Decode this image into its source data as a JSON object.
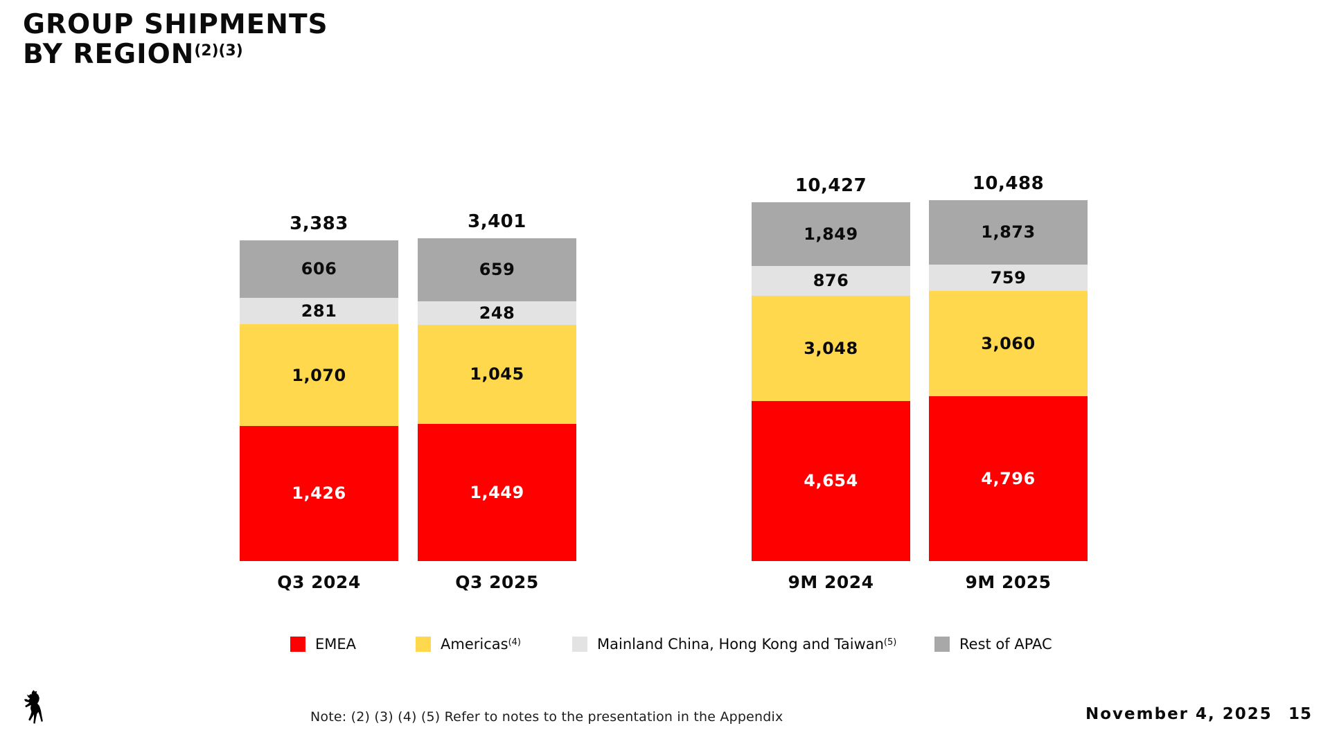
{
  "header": {
    "title_line1": "GROUP SHIPMENTS",
    "title_line2": "BY REGION",
    "title_sup": "(2)(3)"
  },
  "footer": {
    "note": "Note: (2) (3) (4) (5) Refer to notes to the presentation in the Appendix",
    "date": "November 4, 2025",
    "page_number": "15",
    "logo_icon": "ferrari-prancing-horse"
  },
  "colors": {
    "emea_red": "#FF0000",
    "americas_yellow": "#FFD84D",
    "china_light_gray": "#E3E3E3",
    "apac_gray": "#A8A8A8",
    "background": "#FFFFFF",
    "text_black": "#0B0B0B",
    "emea_label_white": "#FFFFFF"
  },
  "chart_data": {
    "type": "bar",
    "stacked": true,
    "title": "GROUP SHIPMENTS BY REGION",
    "value_labels_shown": true,
    "axes_shown": false,
    "grid": false,
    "stack_order_bottom_to_top": [
      "EMEA",
      "Americas",
      "Mainland China, Hong Kong and Taiwan",
      "Rest of APAC"
    ],
    "groups": [
      {
        "categories": [
          "Q3 2024",
          "Q3 2025"
        ],
        "totals": [
          3383,
          3401
        ],
        "series": [
          {
            "name": "EMEA",
            "color": "#FF0000",
            "label_color": "#FFFFFF",
            "values": [
              1426,
              1449
            ]
          },
          {
            "name": "Americas",
            "color": "#FFD84D",
            "label_color": "#0B0B0B",
            "values": [
              1070,
              1045
            ]
          },
          {
            "name": "Mainland China, Hong Kong and Taiwan",
            "color": "#E3E3E3",
            "label_color": "#0B0B0B",
            "values": [
              281,
              248
            ]
          },
          {
            "name": "Rest of APAC",
            "color": "#A8A8A8",
            "label_color": "#0B0B0B",
            "values": [
              606,
              659
            ]
          }
        ]
      },
      {
        "categories": [
          "9M 2024",
          "9M 2025"
        ],
        "totals": [
          10427,
          10488
        ],
        "series": [
          {
            "name": "EMEA",
            "color": "#FF0000",
            "label_color": "#FFFFFF",
            "values": [
              4654,
              4796
            ]
          },
          {
            "name": "Americas",
            "color": "#FFD84D",
            "label_color": "#0B0B0B",
            "values": [
              3048,
              3060
            ]
          },
          {
            "name": "Mainland China, Hong Kong and Taiwan",
            "color": "#E3E3E3",
            "label_color": "#0B0B0B",
            "values": [
              876,
              759
            ]
          },
          {
            "name": "Rest of APAC",
            "color": "#A8A8A8",
            "label_color": "#0B0B0B",
            "values": [
              1849,
              1873
            ]
          }
        ]
      }
    ],
    "legend": {
      "position": "bottom",
      "items": [
        {
          "label": "EMEA",
          "sup": "",
          "color": "#FF0000"
        },
        {
          "label": "Americas",
          "sup": "(4)",
          "color": "#FFD84D"
        },
        {
          "label": "Mainland China, Hong Kong and Taiwan",
          "sup": "(5)",
          "color": "#E3E3E3"
        },
        {
          "label": "Rest of APAC",
          "sup": "",
          "color": "#A8A8A8"
        }
      ]
    }
  }
}
